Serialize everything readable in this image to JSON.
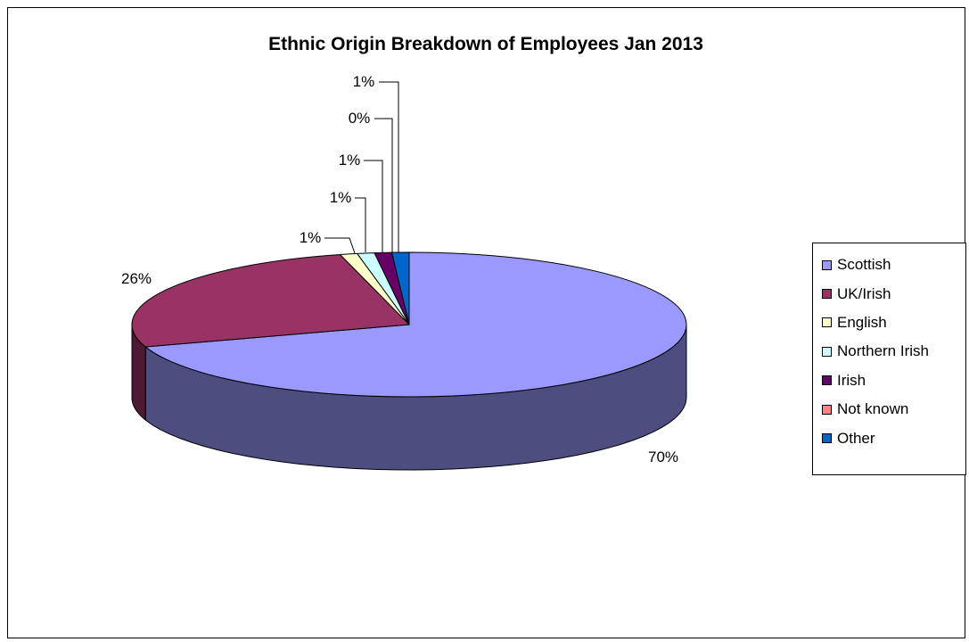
{
  "chart_data": {
    "type": "pie",
    "title": "Ethnic Origin Breakdown of Employees Jan 2013",
    "categories": [
      "Scottish",
      "UK/Irish",
      "English",
      "Northern Irish",
      "Irish",
      "Not known",
      "Other"
    ],
    "values": [
      70,
      26,
      1,
      1,
      1,
      0,
      1
    ],
    "data_labels": [
      "70%",
      "26%",
      "1%",
      "1%",
      "1%",
      "0%",
      "1%"
    ],
    "colors": [
      "#9999FF",
      "#993366",
      "#FFFFCC",
      "#CCFFFF",
      "#660066",
      "#FF8080",
      "#0066CC"
    ],
    "legend_position": "right",
    "style": "3d-pie"
  }
}
